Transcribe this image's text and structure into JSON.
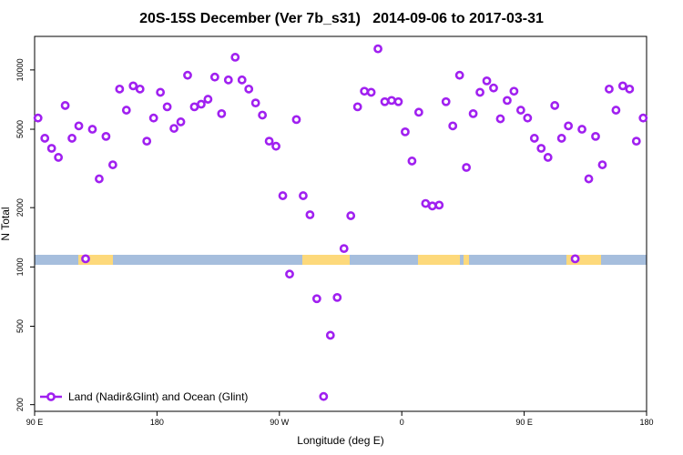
{
  "chart_data": {
    "type": "scatter",
    "title": "20S-15S December (Ver 7b_s31)   2014-09-06 to 2017-03-31",
    "x_label": "Longitude (deg E)",
    "y_label": "N Total",
    "log_y": true,
    "legend_position": "bottom-left",
    "xlim": [
      90,
      540
    ],
    "xticks": [
      {
        "value": 90,
        "label": "90 E"
      },
      180,
      {
        "value": 270,
        "label": "90 W"
      },
      {
        "value": 360,
        "label": "0"
      },
      {
        "value": 450,
        "label": "90 E"
      },
      {
        "value": 540,
        "label": "180"
      }
    ],
    "ylim": [
      185,
      14800
    ],
    "yticks": [
      200,
      500,
      1000,
      2000,
      5000,
      10000
    ],
    "x": [
      92.5,
      97.5,
      102.5,
      107.5,
      112.5,
      117.5,
      122.5,
      127.5,
      132.5,
      137.5,
      142.5,
      147.5,
      152.5,
      157.5,
      162.5,
      167.5,
      172.5,
      177.5,
      182.5,
      187.5,
      192.5,
      197.5,
      202.5,
      207.5,
      212.5,
      217.5,
      222.5,
      227.5,
      232.5,
      237.5,
      242.5,
      247.5,
      252.5,
      257.5,
      262.5,
      267.5,
      272.5,
      277.5,
      282.5,
      287.5,
      292.5,
      297.5,
      302.5,
      307.5,
      312.5,
      317.5,
      322.5,
      327.5,
      332.5,
      337.5,
      342.5,
      347.5,
      352.5,
      357.5,
      362.5,
      367.5,
      372.5,
      377.5,
      382.5,
      387.5,
      392.5,
      397.5,
      402.5,
      407.5,
      412.5,
      417.5,
      422.5,
      427.5,
      432.5,
      437.5,
      442.5,
      447.5,
      452.5,
      457.5,
      462.5,
      467.5,
      472.5,
      477.5,
      482.5,
      487.5,
      492.5,
      497.5,
      502.5,
      507.5,
      512.5,
      517.5,
      522.5,
      527.5,
      532.5,
      537.5
    ],
    "series": [
      {
        "name": "Land (Nadir&Glint) and Ocean (Glint)",
        "color": "#a020f0",
        "values": [
          5700,
          4500,
          4000,
          3600,
          6600,
          4500,
          5200,
          1100,
          5000,
          2800,
          4600,
          3300,
          8000,
          6250,
          8300,
          8000,
          4350,
          5700,
          7700,
          6500,
          5050,
          5450,
          9400,
          6500,
          6700,
          7100,
          9200,
          6000,
          8900,
          11600,
          8900,
          8000,
          6800,
          5900,
          4350,
          4100,
          2300,
          920,
          5600,
          2300,
          1840,
          690,
          220,
          450,
          700,
          1240,
          1820,
          6500,
          7800,
          7700,
          12800,
          6900,
          7000,
          6900,
          4850,
          3450,
          6100,
          2100,
          2040,
          2060,
          6900,
          5200,
          9400,
          3200,
          6000,
          7700,
          8800,
          8100,
          5650,
          7000,
          7800,
          6250,
          5700,
          4500,
          4000,
          3600,
          6600,
          4500,
          5200,
          1100,
          5000,
          2800,
          4600,
          3300,
          8000,
          6250,
          8300,
          8000,
          4350,
          5700
        ]
      }
    ]
  }
}
